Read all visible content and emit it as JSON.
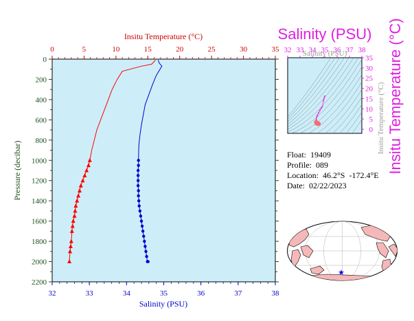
{
  "chart_data": [
    {
      "type": "line",
      "top_axis_title": "Insitu Temperature (°C)",
      "xlabel": "Salinity (PSU)",
      "ylabel": "Pressure (decibar)",
      "salinity_range": [
        32,
        38
      ],
      "temperature_range": [
        0,
        35
      ],
      "pressure_range": [
        0,
        2200
      ],
      "pressure_ticks": [
        0,
        200,
        400,
        600,
        800,
        1000,
        1200,
        1400,
        1600,
        1800,
        2000,
        2200
      ],
      "salinity_ticks": [
        32,
        33,
        34,
        35,
        36,
        37,
        38
      ],
      "temperature_ticks": [
        0,
        5,
        10,
        15,
        20,
        25,
        30,
        35
      ],
      "grid": false,
      "series": [
        {
          "key": "temperature",
          "color": "#ff0000",
          "marker": "triangle",
          "x": [
            16.2,
            15.6,
            14.0,
            11.0,
            10.2,
            9.4,
            8.8,
            8.2,
            7.6,
            7.0,
            6.6,
            6.2,
            5.9,
            5.7,
            5.4,
            5.1,
            4.8,
            4.5,
            4.3,
            4.1,
            3.9,
            3.7,
            3.6,
            3.5,
            3.3,
            3.2,
            3.1,
            3.0,
            2.9,
            2.8,
            2.7
          ],
          "y": [
            10,
            50,
            70,
            120,
            200,
            300,
            400,
            500,
            600,
            700,
            800,
            900,
            1000,
            1050,
            1100,
            1150,
            1200,
            1250,
            1300,
            1350,
            1400,
            1450,
            1500,
            1550,
            1600,
            1650,
            1700,
            1800,
            1850,
            1900,
            2000
          ],
          "marker_from_pressure": 1000
        },
        {
          "key": "salinity",
          "color": "#0000cd",
          "marker": "circle",
          "x": [
            34.85,
            34.88,
            34.95,
            34.9,
            34.8,
            34.7,
            34.6,
            34.5,
            34.45,
            34.4,
            34.36,
            34.33,
            34.32,
            34.32,
            34.31,
            34.31,
            34.31,
            34.31,
            34.32,
            34.32,
            34.33,
            34.34,
            34.36,
            34.38,
            34.4,
            34.42,
            34.44,
            34.46,
            34.48,
            34.5,
            34.52,
            34.54,
            34.56,
            34.58
          ],
          "y": [
            10,
            40,
            70,
            100,
            160,
            250,
            350,
            450,
            550,
            650,
            750,
            850,
            1000,
            1050,
            1100,
            1150,
            1200,
            1250,
            1300,
            1350,
            1400,
            1450,
            1500,
            1550,
            1600,
            1650,
            1700,
            1750,
            1800,
            1850,
            1900,
            1950,
            2000,
            2000
          ],
          "marker_from_pressure": 1000
        }
      ]
    },
    {
      "type": "scatter",
      "title": "Salinity (PSU)",
      "ylabel": "Insitu Temperature (°C)",
      "ghost_title": "Salinity (PSU)",
      "ghost_ylabel": "Insitu Temperature (°C)",
      "x_ticks": [
        32,
        33,
        34,
        35,
        36,
        37,
        38
      ],
      "y_ticks": [
        0,
        5,
        10,
        15,
        20,
        25,
        30,
        35
      ],
      "x_range": [
        32,
        38
      ],
      "y_range": [
        -2,
        35
      ],
      "colors": {
        "profile": "#e040e0",
        "deep": "#f07070"
      },
      "points": [
        {
          "s": 35.0,
          "t": 16.2
        },
        {
          "s": 34.95,
          "t": 15.2
        },
        {
          "s": 34.9,
          "t": 14.0
        },
        {
          "s": 34.8,
          "t": 11.0
        },
        {
          "s": 34.7,
          "t": 10.2
        },
        {
          "s": 34.6,
          "t": 9.2
        },
        {
          "s": 34.5,
          "t": 8.0
        },
        {
          "s": 34.4,
          "t": 6.8
        },
        {
          "s": 34.35,
          "t": 6.0
        },
        {
          "s": 34.32,
          "t": 4.8
        },
        {
          "s": 34.31,
          "t": 4.0
        },
        {
          "s": 34.31,
          "t": 3.5
        },
        {
          "s": 34.32,
          "t": 3.2
        },
        {
          "s": 34.34,
          "t": 3.0
        },
        {
          "s": 34.36,
          "t": 2.9
        },
        {
          "s": 34.4,
          "t": 2.8
        },
        {
          "s": 34.45,
          "t": 2.75
        },
        {
          "s": 34.5,
          "t": 2.7
        }
      ]
    }
  ],
  "info": {
    "float": "Float:  19409",
    "profile": "Profile:  089",
    "location": "Location:  46.2°S  -172.4°E",
    "date": "Date:  02/22/2023"
  },
  "colors": {
    "plot_bg": "#cdeef8",
    "temperature_axis": "#cc0000",
    "salinity_axis": "#0000cd",
    "pressure_axis": "#1a4d1a",
    "land": "#f5b8b8",
    "ocean": "#ffffff",
    "float_marker": "#0000ff"
  },
  "map": {
    "marker_symbol": "★"
  }
}
